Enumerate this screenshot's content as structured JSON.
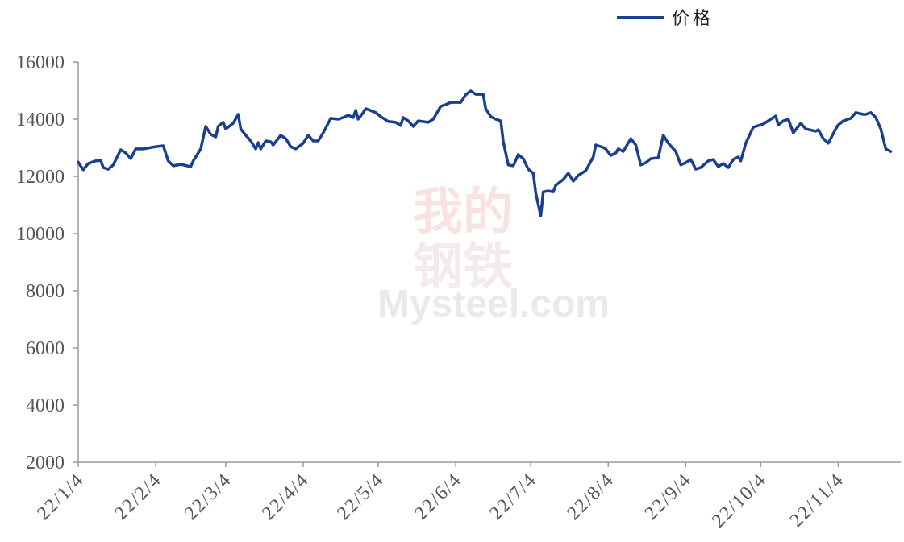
{
  "chart_data": {
    "type": "line",
    "xaxis_type": "date",
    "xlim": [
      "2022-01-04",
      "2022-11-29"
    ],
    "ylim": [
      2000,
      16000
    ],
    "yticks": [
      16000,
      14000,
      12000,
      10000,
      8000,
      6000,
      4000,
      2000
    ],
    "xticks": [
      {
        "date": "2022-01-04",
        "label": "22/1/4"
      },
      {
        "date": "2022-02-04",
        "label": "22/2/4"
      },
      {
        "date": "2022-03-04",
        "label": "22/3/4"
      },
      {
        "date": "2022-04-04",
        "label": "22/4/4"
      },
      {
        "date": "2022-05-04",
        "label": "22/5/4"
      },
      {
        "date": "2022-06-04",
        "label": "22/6/4"
      },
      {
        "date": "2022-07-04",
        "label": "22/7/4"
      },
      {
        "date": "2022-08-04",
        "label": "22/8/4"
      },
      {
        "date": "2022-09-04",
        "label": "22/9/4"
      },
      {
        "date": "2022-10-04",
        "label": "22/10/4"
      },
      {
        "date": "2022-11-04",
        "label": "22/11/4"
      }
    ],
    "grid": false,
    "legend": {
      "position": "top-right"
    },
    "series": [
      {
        "name": "价格",
        "color": "#1a3f8f",
        "points": [
          [
            "2022-01-04",
            12500
          ],
          [
            "2022-01-06",
            12230
          ],
          [
            "2022-01-08",
            12450
          ],
          [
            "2022-01-11",
            12540
          ],
          [
            "2022-01-13",
            12560
          ],
          [
            "2022-01-14",
            12310
          ],
          [
            "2022-01-16",
            12250
          ],
          [
            "2022-01-18",
            12400
          ],
          [
            "2022-01-21",
            12930
          ],
          [
            "2022-01-23",
            12820
          ],
          [
            "2022-01-25",
            12620
          ],
          [
            "2022-01-27",
            12960
          ],
          [
            "2022-01-30",
            12960
          ],
          [
            "2022-02-04",
            13040
          ],
          [
            "2022-02-07",
            13070
          ],
          [
            "2022-02-09",
            12540
          ],
          [
            "2022-02-11",
            12370
          ],
          [
            "2022-02-14",
            12420
          ],
          [
            "2022-02-18",
            12340
          ],
          [
            "2022-02-19",
            12540
          ],
          [
            "2022-02-22",
            12960
          ],
          [
            "2022-02-24",
            13750
          ],
          [
            "2022-02-26",
            13470
          ],
          [
            "2022-02-28",
            13380
          ],
          [
            "2022-03-01",
            13750
          ],
          [
            "2022-03-03",
            13890
          ],
          [
            "2022-03-04",
            13660
          ],
          [
            "2022-03-07",
            13860
          ],
          [
            "2022-03-09",
            14170
          ],
          [
            "2022-03-10",
            13660
          ],
          [
            "2022-03-12",
            13440
          ],
          [
            "2022-03-14",
            13240
          ],
          [
            "2022-03-16",
            12960
          ],
          [
            "2022-03-17",
            13180
          ],
          [
            "2022-03-18",
            12960
          ],
          [
            "2022-03-20",
            13240
          ],
          [
            "2022-03-22",
            13210
          ],
          [
            "2022-03-23",
            13100
          ],
          [
            "2022-03-26",
            13440
          ],
          [
            "2022-03-28",
            13320
          ],
          [
            "2022-03-30",
            13040
          ],
          [
            "2022-04-01",
            12960
          ],
          [
            "2022-04-04",
            13160
          ],
          [
            "2022-04-06",
            13440
          ],
          [
            "2022-04-08",
            13240
          ],
          [
            "2022-04-10",
            13240
          ],
          [
            "2022-04-12",
            13520
          ],
          [
            "2022-04-15",
            14030
          ],
          [
            "2022-04-18",
            14000
          ],
          [
            "2022-04-20",
            14060
          ],
          [
            "2022-04-22",
            14140
          ],
          [
            "2022-04-24",
            14060
          ],
          [
            "2022-04-25",
            14310
          ],
          [
            "2022-04-26",
            14000
          ],
          [
            "2022-04-28",
            14230
          ],
          [
            "2022-04-29",
            14370
          ],
          [
            "2022-05-03",
            14230
          ],
          [
            "2022-05-05",
            14090
          ],
          [
            "2022-05-08",
            13920
          ],
          [
            "2022-05-11",
            13890
          ],
          [
            "2022-05-13",
            13780
          ],
          [
            "2022-05-14",
            14060
          ],
          [
            "2022-05-16",
            13940
          ],
          [
            "2022-05-18",
            13750
          ],
          [
            "2022-05-20",
            13940
          ],
          [
            "2022-05-24",
            13890
          ],
          [
            "2022-05-26",
            14000
          ],
          [
            "2022-05-29",
            14450
          ],
          [
            "2022-05-31",
            14510
          ],
          [
            "2022-06-02",
            14590
          ],
          [
            "2022-06-04",
            14590
          ],
          [
            "2022-06-06",
            14590
          ],
          [
            "2022-06-08",
            14850
          ],
          [
            "2022-06-10",
            14990
          ],
          [
            "2022-06-12",
            14870
          ],
          [
            "2022-06-15",
            14870
          ],
          [
            "2022-06-16",
            14370
          ],
          [
            "2022-06-18",
            14090
          ],
          [
            "2022-06-20",
            14000
          ],
          [
            "2022-06-22",
            13940
          ],
          [
            "2022-06-23",
            13210
          ],
          [
            "2022-06-25",
            12400
          ],
          [
            "2022-06-27",
            12370
          ],
          [
            "2022-06-29",
            12760
          ],
          [
            "2022-07-01",
            12620
          ],
          [
            "2022-07-03",
            12250
          ],
          [
            "2022-07-05",
            12110
          ],
          [
            "2022-07-06",
            11410
          ],
          [
            "2022-07-08",
            10620
          ],
          [
            "2022-07-09",
            11460
          ],
          [
            "2022-07-11",
            11490
          ],
          [
            "2022-07-13",
            11460
          ],
          [
            "2022-07-14",
            11690
          ],
          [
            "2022-07-17",
            11890
          ],
          [
            "2022-07-19",
            12110
          ],
          [
            "2022-07-21",
            11830
          ],
          [
            "2022-07-23",
            12030
          ],
          [
            "2022-07-26",
            12200
          ],
          [
            "2022-07-29",
            12680
          ],
          [
            "2022-07-30",
            13100
          ],
          [
            "2022-08-02",
            13010
          ],
          [
            "2022-08-03",
            12960
          ],
          [
            "2022-08-05",
            12730
          ],
          [
            "2022-08-07",
            12820
          ],
          [
            "2022-08-08",
            12960
          ],
          [
            "2022-08-10",
            12870
          ],
          [
            "2022-08-13",
            13320
          ],
          [
            "2022-08-15",
            13100
          ],
          [
            "2022-08-17",
            12400
          ],
          [
            "2022-08-19",
            12480
          ],
          [
            "2022-08-21",
            12620
          ],
          [
            "2022-08-24",
            12650
          ],
          [
            "2022-08-26",
            13440
          ],
          [
            "2022-08-28",
            13160
          ],
          [
            "2022-08-31",
            12870
          ],
          [
            "2022-09-02",
            12400
          ],
          [
            "2022-09-04",
            12480
          ],
          [
            "2022-09-06",
            12590
          ],
          [
            "2022-09-08",
            12250
          ],
          [
            "2022-09-10",
            12310
          ],
          [
            "2022-09-13",
            12540
          ],
          [
            "2022-09-15",
            12590
          ],
          [
            "2022-09-17",
            12340
          ],
          [
            "2022-09-19",
            12450
          ],
          [
            "2022-09-21",
            12310
          ],
          [
            "2022-09-23",
            12590
          ],
          [
            "2022-09-25",
            12680
          ],
          [
            "2022-09-26",
            12540
          ],
          [
            "2022-09-28",
            13160
          ],
          [
            "2022-10-01",
            13720
          ],
          [
            "2022-10-05",
            13830
          ],
          [
            "2022-10-08",
            14000
          ],
          [
            "2022-10-10",
            14110
          ],
          [
            "2022-10-11",
            13800
          ],
          [
            "2022-10-13",
            13940
          ],
          [
            "2022-10-15",
            14000
          ],
          [
            "2022-10-17",
            13520
          ],
          [
            "2022-10-20",
            13860
          ],
          [
            "2022-10-22",
            13660
          ],
          [
            "2022-10-26",
            13580
          ],
          [
            "2022-10-27",
            13630
          ],
          [
            "2022-10-29",
            13320
          ],
          [
            "2022-10-31",
            13160
          ],
          [
            "2022-11-03",
            13660
          ],
          [
            "2022-11-04",
            13800
          ],
          [
            "2022-11-06",
            13940
          ],
          [
            "2022-11-09",
            14030
          ],
          [
            "2022-11-11",
            14230
          ],
          [
            "2022-11-14",
            14170
          ],
          [
            "2022-11-15",
            14170
          ],
          [
            "2022-11-17",
            14230
          ],
          [
            "2022-11-19",
            14060
          ],
          [
            "2022-11-21",
            13660
          ],
          [
            "2022-11-23",
            12960
          ],
          [
            "2022-11-25",
            12870
          ]
        ]
      }
    ]
  },
  "watermark": {
    "line1": "我的",
    "line2": "钢铁",
    "brand": "Mysteel.com"
  }
}
